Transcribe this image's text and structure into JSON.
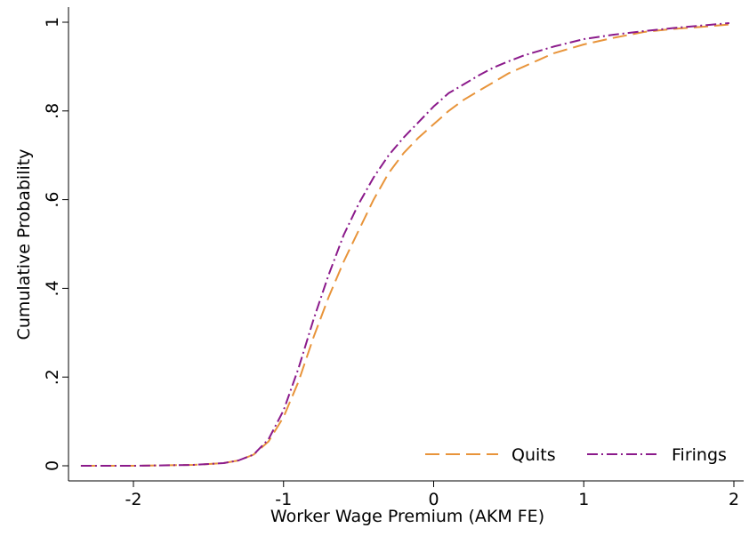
{
  "chart_data": {
    "type": "line",
    "title": "",
    "xlabel": "Worker Wage Premium (AKM FE)",
    "ylabel": "Cumulative Probability",
    "xlim": [
      -2.35,
      2.0
    ],
    "ylim": [
      0,
      1
    ],
    "x_ticks": [
      {
        "value": -2,
        "label": "-2"
      },
      {
        "value": -1,
        "label": "-1"
      },
      {
        "value": 0,
        "label": "0"
      },
      {
        "value": 1,
        "label": "1"
      },
      {
        "value": 2,
        "label": "2"
      }
    ],
    "y_ticks": [
      {
        "value": 0,
        "label": "0"
      },
      {
        "value": 0.2,
        "label": ".2"
      },
      {
        "value": 0.4,
        "label": ".4"
      },
      {
        "value": 0.6,
        "label": ".6"
      },
      {
        "value": 0.8,
        "label": ".8"
      },
      {
        "value": 1,
        "label": "1"
      }
    ],
    "grid": false,
    "legend_position": "bottom-right",
    "series": [
      {
        "name": "Quits",
        "color": "#e8943a",
        "style": "long-dash",
        "points": [
          [
            -2.35,
            0.0
          ],
          [
            -2.0,
            0.0
          ],
          [
            -1.6,
            0.002
          ],
          [
            -1.4,
            0.006
          ],
          [
            -1.3,
            0.012
          ],
          [
            -1.2,
            0.025
          ],
          [
            -1.1,
            0.055
          ],
          [
            -1.0,
            0.11
          ],
          [
            -0.9,
            0.19
          ],
          [
            -0.8,
            0.29
          ],
          [
            -0.7,
            0.38
          ],
          [
            -0.6,
            0.46
          ],
          [
            -0.5,
            0.53
          ],
          [
            -0.4,
            0.6
          ],
          [
            -0.3,
            0.66
          ],
          [
            -0.2,
            0.705
          ],
          [
            -0.1,
            0.74
          ],
          [
            0.0,
            0.77
          ],
          [
            0.1,
            0.8
          ],
          [
            0.2,
            0.825
          ],
          [
            0.3,
            0.845
          ],
          [
            0.4,
            0.865
          ],
          [
            0.5,
            0.885
          ],
          [
            0.6,
            0.9
          ],
          [
            0.7,
            0.915
          ],
          [
            0.8,
            0.93
          ],
          [
            1.0,
            0.95
          ],
          [
            1.2,
            0.965
          ],
          [
            1.4,
            0.978
          ],
          [
            1.6,
            0.985
          ],
          [
            1.8,
            0.99
          ],
          [
            1.97,
            0.995
          ]
        ]
      },
      {
        "name": "Firings",
        "color": "#8b1a8b",
        "style": "dash-dot",
        "points": [
          [
            -2.35,
            0.0
          ],
          [
            -2.0,
            0.0
          ],
          [
            -1.6,
            0.002
          ],
          [
            -1.4,
            0.006
          ],
          [
            -1.3,
            0.012
          ],
          [
            -1.2,
            0.025
          ],
          [
            -1.1,
            0.06
          ],
          [
            -1.0,
            0.125
          ],
          [
            -0.9,
            0.22
          ],
          [
            -0.8,
            0.33
          ],
          [
            -0.7,
            0.43
          ],
          [
            -0.6,
            0.52
          ],
          [
            -0.5,
            0.59
          ],
          [
            -0.4,
            0.65
          ],
          [
            -0.3,
            0.7
          ],
          [
            -0.2,
            0.74
          ],
          [
            -0.1,
            0.775
          ],
          [
            0.0,
            0.81
          ],
          [
            0.1,
            0.84
          ],
          [
            0.2,
            0.86
          ],
          [
            0.3,
            0.88
          ],
          [
            0.4,
            0.898
          ],
          [
            0.5,
            0.912
          ],
          [
            0.6,
            0.925
          ],
          [
            0.7,
            0.935
          ],
          [
            0.8,
            0.945
          ],
          [
            1.0,
            0.962
          ],
          [
            1.2,
            0.972
          ],
          [
            1.4,
            0.98
          ],
          [
            1.6,
            0.987
          ],
          [
            1.8,
            0.993
          ],
          [
            1.97,
            0.998
          ]
        ]
      }
    ]
  }
}
